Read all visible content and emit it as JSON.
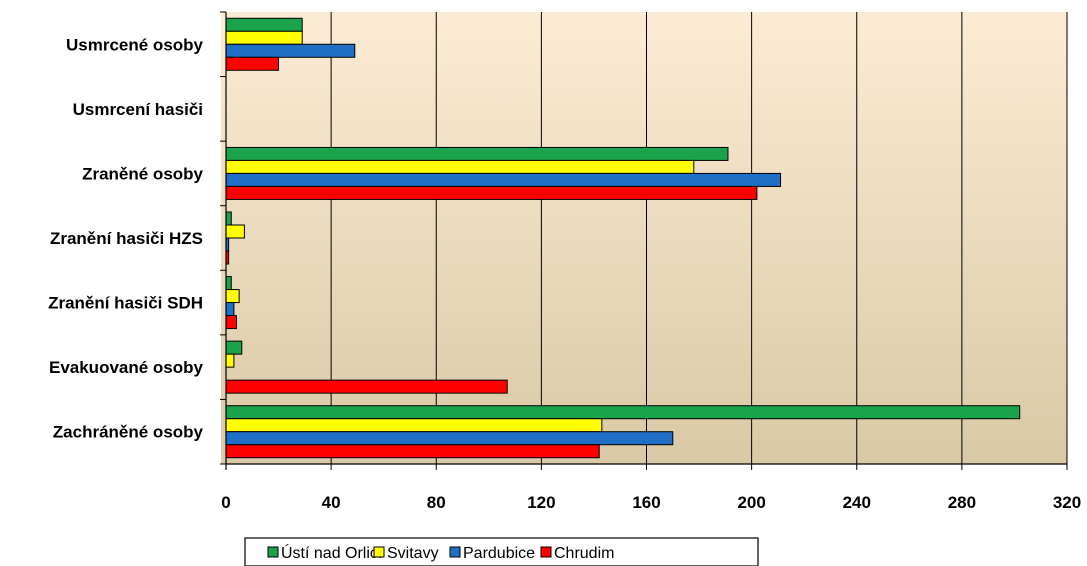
{
  "chart_data": {
    "type": "bar",
    "orientation": "horizontal",
    "categories": [
      "Usmrcené osoby",
      "Usmrcení hasiči",
      "Zraněné osoby",
      "Zranění hasiči HZS",
      "Zranění hasiči SDH",
      "Evakuované osoby",
      "Zachráněné osoby"
    ],
    "series": [
      {
        "name": "Ústí nad Orlicí",
        "color": "#1aa34a",
        "values": [
          29,
          0,
          191,
          2,
          2,
          6,
          302
        ]
      },
      {
        "name": "Svitavy",
        "color": "#ffff00",
        "values": [
          29,
          0,
          178,
          7,
          5,
          3,
          143
        ]
      },
      {
        "name": "Pardubice",
        "color": "#1f6fc6",
        "values": [
          49,
          0,
          211,
          1,
          3,
          0,
          170
        ]
      },
      {
        "name": "Chrudim",
        "color": "#ff0000",
        "values": [
          20,
          0,
          202,
          1,
          4,
          107,
          142
        ]
      }
    ],
    "xlim": [
      0,
      320
    ],
    "xticks": [
      "0",
      "40",
      "80",
      "120",
      "160",
      "200",
      "240",
      "280",
      "320"
    ],
    "grid": true,
    "legend_position": "bottom",
    "plot_background": [
      "#fdebd4",
      "#d9c9a6"
    ]
  }
}
